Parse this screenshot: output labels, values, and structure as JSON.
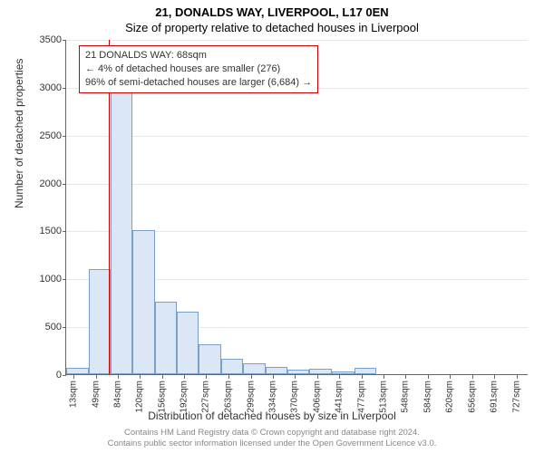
{
  "title_main": "21, DONALDS WAY, LIVERPOOL, L17 0EN",
  "title_sub": "Size of property relative to detached houses in Liverpool",
  "ylabel": "Number of detached properties",
  "xlabel": "Distribution of detached houses by size in Liverpool",
  "chart": {
    "type": "histogram",
    "ylim": [
      0,
      3500
    ],
    "yticks": [
      0,
      500,
      1000,
      1500,
      2000,
      2500,
      3000,
      3500
    ],
    "x_range": [
      0,
      745
    ],
    "x_tick_labels": [
      "13sqm",
      "49sqm",
      "84sqm",
      "120sqm",
      "156sqm",
      "192sqm",
      "227sqm",
      "263sqm",
      "299sqm",
      "334sqm",
      "370sqm",
      "406sqm",
      "441sqm",
      "477sqm",
      "513sqm",
      "548sqm",
      "584sqm",
      "620sqm",
      "656sqm",
      "691sqm",
      "727sqm"
    ],
    "x_tick_positions": [
      13,
      49,
      84,
      120,
      156,
      192,
      227,
      263,
      299,
      334,
      370,
      406,
      441,
      477,
      513,
      548,
      584,
      620,
      656,
      691,
      727
    ],
    "bars": [
      {
        "start": 0,
        "end": 36,
        "value": 70
      },
      {
        "start": 36,
        "end": 71,
        "value": 1100
      },
      {
        "start": 71,
        "end": 107,
        "value": 3050
      },
      {
        "start": 107,
        "end": 143,
        "value": 1500
      },
      {
        "start": 143,
        "end": 178,
        "value": 760
      },
      {
        "start": 178,
        "end": 214,
        "value": 650
      },
      {
        "start": 214,
        "end": 250,
        "value": 310
      },
      {
        "start": 250,
        "end": 285,
        "value": 160
      },
      {
        "start": 285,
        "end": 321,
        "value": 110
      },
      {
        "start": 321,
        "end": 357,
        "value": 75
      },
      {
        "start": 357,
        "end": 392,
        "value": 50
      },
      {
        "start": 392,
        "end": 428,
        "value": 55
      },
      {
        "start": 428,
        "end": 464,
        "value": 30
      },
      {
        "start": 464,
        "end": 499,
        "value": 70
      }
    ],
    "bar_fill": "#dbe7f5",
    "bar_stroke": "#7a9fc9",
    "grid_color": "#e8e8e8",
    "axis_color": "#666666",
    "ref_line_x": 68,
    "ref_line_color": "#cc0000"
  },
  "info_box": {
    "line1": "21 DONALDS WAY: 68sqm",
    "line2": "← 4% of detached houses are smaller (276)",
    "line3": "96% of semi-detached houses are larger (6,684) →"
  },
  "footer": {
    "line1": "Contains HM Land Registry data © Crown copyright and database right 2024.",
    "line2": "Contains public sector information licensed under the Open Government Licence v3.0."
  }
}
